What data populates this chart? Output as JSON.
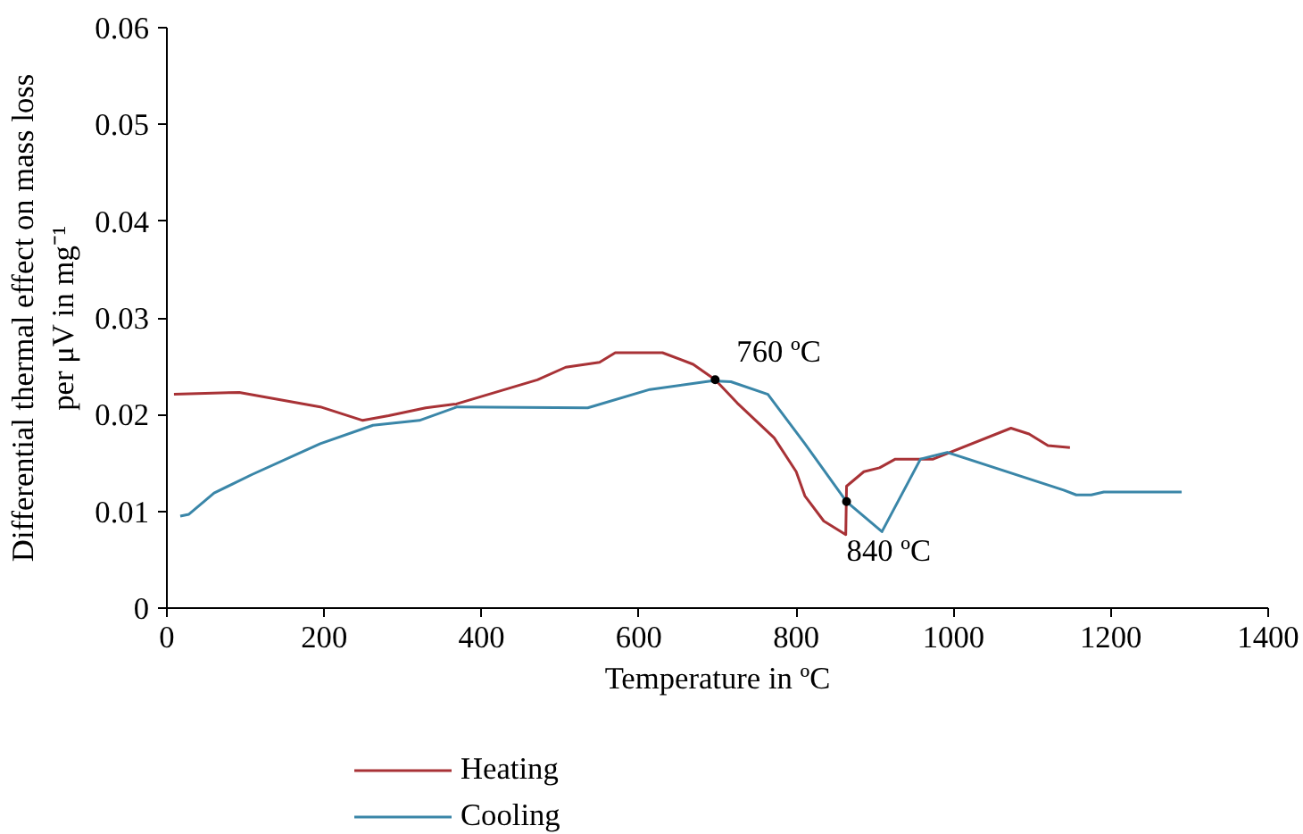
{
  "chart_data": {
    "type": "line",
    "xlabel": "Temperature in ºC",
    "ylabel": "Differential thermal effect on mass loss\nper μV in mg⁻¹",
    "xlim": [
      0,
      1400
    ],
    "xticks": [
      0,
      200,
      400,
      600,
      800,
      1000,
      1200,
      1400
    ],
    "ylim": [
      0,
      0.06
    ],
    "yticks": [
      0,
      0.01,
      0.02,
      0.03,
      0.04,
      0.05,
      0.06
    ],
    "grid": false,
    "legend": "bottom",
    "marker": "none",
    "line_style": "solid",
    "series": [
      {
        "name": "Heating",
        "color": "#a83236",
        "x": [
          9,
          92,
          195,
          249,
          282,
          329,
          368,
          471,
          507,
          550,
          570,
          630,
          669,
          697,
          725,
          772,
          800,
          811,
          835,
          863,
          864,
          886,
          906,
          926,
          974,
          1073,
          1096,
          1120,
          1148
        ],
        "values": [
          0.0221,
          0.0223,
          0.0208,
          0.0194,
          0.0199,
          0.0207,
          0.0211,
          0.0236,
          0.0249,
          0.0254,
          0.0264,
          0.0264,
          0.0252,
          0.0236,
          0.0212,
          0.0176,
          0.0141,
          0.0116,
          0.009,
          0.0076,
          0.0126,
          0.0141,
          0.0145,
          0.0154,
          0.0154,
          0.0186,
          0.018,
          0.0168,
          0.0166
        ]
      },
      {
        "name": "Cooling",
        "color": "#3a86a8",
        "x": [
          17,
          28,
          60,
          108,
          195,
          262,
          321,
          369,
          535,
          614,
          693,
          717,
          764,
          811,
          864,
          909,
          958,
          992,
          1140,
          1156,
          1175,
          1191,
          1290
        ],
        "values": [
          0.0095,
          0.0097,
          0.0119,
          0.0138,
          0.017,
          0.0189,
          0.0194,
          0.0208,
          0.0207,
          0.0226,
          0.0235,
          0.0234,
          0.0221,
          0.017,
          0.011,
          0.0079,
          0.0154,
          0.0161,
          0.0122,
          0.0117,
          0.0117,
          0.012,
          0.012
        ]
      }
    ],
    "annotations": [
      {
        "text": "760 ºC",
        "x": 697,
        "y": 0.0236
      },
      {
        "text": "840 ºC",
        "x": 864,
        "y": 0.011
      }
    ]
  }
}
